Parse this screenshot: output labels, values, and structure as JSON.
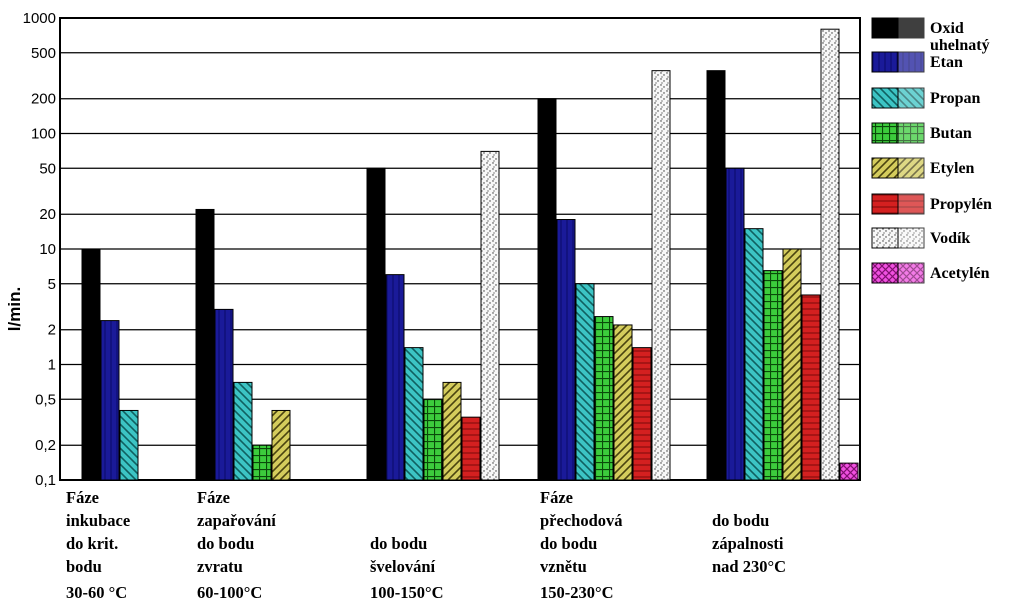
{
  "chart_data": {
    "type": "bar",
    "ylabel": "l/min.",
    "yscale": "log",
    "ylim": [
      0.1,
      1000
    ],
    "yticks": [
      0.1,
      0.2,
      0.5,
      1,
      2,
      5,
      10,
      20,
      50,
      100,
      200,
      500,
      1000
    ],
    "ytick_labels": [
      "0,1",
      "0,2",
      "0,5",
      "1",
      "2",
      "5",
      "10",
      "20",
      "50",
      "100",
      "200",
      "500",
      "1000"
    ],
    "grid": "horizontal",
    "legend_position": "right",
    "categories": [
      [
        "Fáze",
        "inkubace",
        "do krit.",
        "bodu",
        "30-60 °C"
      ],
      [
        "Fáze",
        "zapařování",
        "do bodu",
        "zvratu",
        "60-100°C"
      ],
      [
        "",
        "",
        "do bodu",
        "švelování",
        "100-150°C"
      ],
      [
        "Fáze",
        "přechodová",
        "do bodu",
        "vznětu",
        "150-230°C"
      ],
      [
        "",
        "do bodu",
        "zápalnosti",
        "nad 230°C",
        ""
      ]
    ],
    "series": [
      {
        "name": [
          "Oxid",
          "uhelnatý"
        ],
        "color": "#000000",
        "values": [
          10,
          22,
          50,
          200,
          350
        ]
      },
      {
        "name": [
          "Etan"
        ],
        "color": "#1a1a99",
        "values": [
          2.4,
          3,
          6,
          18,
          50
        ]
      },
      {
        "name": [
          "Propan"
        ],
        "color": "#22a8a8",
        "values": [
          0.4,
          0.7,
          1.4,
          5,
          15
        ]
      },
      {
        "name": [
          "Butan"
        ],
        "color": "#2aa82a",
        "values": [
          0.1,
          0.2,
          0.5,
          2.6,
          6.5
        ]
      },
      {
        "name": [
          "Etylen"
        ],
        "color": "#b8b040",
        "values": [
          0.1,
          0.4,
          0.7,
          2.2,
          10
        ]
      },
      {
        "name": [
          "Propylén"
        ],
        "color": "#cc1a1a",
        "values": [
          0.1,
          0.1,
          0.35,
          1.4,
          4
        ]
      },
      {
        "name": [
          "Vodík"
        ],
        "color": "#f2f2f2",
        "values": [
          0.1,
          0.1,
          70,
          350,
          800
        ]
      },
      {
        "name": [
          "Acetylén"
        ],
        "color": "#e83ad8",
        "values": [
          null,
          null,
          null,
          null,
          0.14
        ]
      }
    ]
  }
}
